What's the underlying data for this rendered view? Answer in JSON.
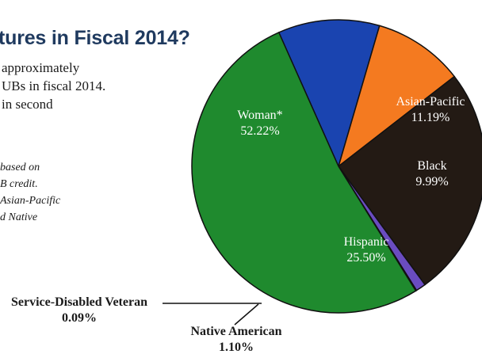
{
  "title": "tures in Fiscal 2014?",
  "intro_lines": [
    "approximately",
    "UBs in fiscal 2014.",
    "in second"
  ],
  "note_lines": [
    "based on",
    "B credit.",
    "Asian-Pacific",
    "d Native"
  ],
  "chart_data": {
    "type": "pie",
    "title": "",
    "slices": [
      {
        "label": "Woman*",
        "value": 52.22,
        "display": "52.22%",
        "color": "#1f8a2e"
      },
      {
        "label": "Asian-Pacific",
        "value": 11.19,
        "display": "11.19%",
        "color": "#1a44b0"
      },
      {
        "label": "Black",
        "value": 9.99,
        "display": "9.99%",
        "color": "#f47a20"
      },
      {
        "label": "Hispanic",
        "value": 25.5,
        "display": "25.50%",
        "color": "#231a14"
      },
      {
        "label": "Native American",
        "value": 1.1,
        "display": "1.10%",
        "color": "#6a4cc0"
      },
      {
        "label": "Service-Disabled Veteran",
        "value": 0.09,
        "display": "0.09%",
        "color": "#111111"
      }
    ]
  }
}
